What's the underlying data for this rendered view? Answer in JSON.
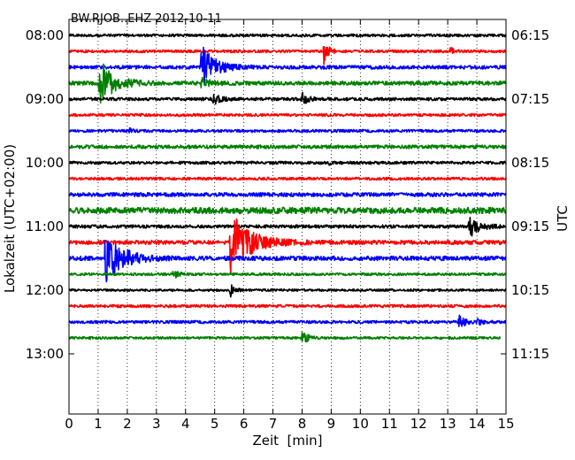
{
  "chart_data": {
    "type": "line",
    "title": "BW.RJOB..EHZ 2012-10-11",
    "xlabel": "Zeit  [min]",
    "ylabel_left": "Lokalzeit (UTC+02:00)",
    "ylabel_right": "UTC",
    "xlim": [
      0,
      15
    ],
    "x_ticks": [
      "0",
      "1",
      "2",
      "3",
      "4",
      "5",
      "6",
      "7",
      "8",
      "9",
      "10",
      "11",
      "12",
      "13",
      "14",
      "15"
    ],
    "row_interval_min": 15,
    "row_count": 20,
    "left_ticks": [
      "08:00",
      "09:00",
      "10:00",
      "11:00",
      "12:00",
      "13:00"
    ],
    "right_ticks": [
      "06:15",
      "07:15",
      "08:15",
      "09:15",
      "10:15",
      "11:15"
    ],
    "grid": "vertical dotted at every minute",
    "colors": [
      "#000000",
      "#ff0000",
      "#0000ff",
      "#008000"
    ],
    "trace_rows": [
      {
        "color": "#000000",
        "base_amp": 1.5,
        "events": []
      },
      {
        "color": "#ff0000",
        "base_amp": 1.5,
        "events": [
          {
            "x": 8.75,
            "amp": 14,
            "dur": 0.4
          },
          {
            "x": 13.1,
            "amp": 4,
            "dur": 0.3
          }
        ]
      },
      {
        "color": "#0000ff",
        "base_amp": 2.0,
        "events": [
          {
            "x": 4.55,
            "amp": 24,
            "dur": 1.2
          }
        ]
      },
      {
        "color": "#008000",
        "base_amp": 2.2,
        "events": [
          {
            "x": 1.05,
            "amp": 26,
            "dur": 1.3
          },
          {
            "x": 4.55,
            "amp": 5,
            "dur": 0.8
          }
        ]
      },
      {
        "color": "#000000",
        "base_amp": 1.7,
        "events": [
          {
            "x": 4.95,
            "amp": 6,
            "dur": 0.6
          },
          {
            "x": 8.0,
            "amp": 7,
            "dur": 0.5
          }
        ]
      },
      {
        "color": "#ff0000",
        "base_amp": 1.5,
        "events": []
      },
      {
        "color": "#0000ff",
        "base_amp": 1.5,
        "events": [
          {
            "x": 2.05,
            "amp": 3,
            "dur": 0.3
          }
        ]
      },
      {
        "color": "#008000",
        "base_amp": 2.0,
        "events": []
      },
      {
        "color": "#000000",
        "base_amp": 1.6,
        "events": [
          {
            "x": 8.95,
            "amp": 3,
            "dur": 0.3
          }
        ]
      },
      {
        "color": "#ff0000",
        "base_amp": 1.5,
        "events": []
      },
      {
        "color": "#0000ff",
        "base_amp": 2.2,
        "events": []
      },
      {
        "color": "#008000",
        "base_amp": 3.4,
        "events": []
      },
      {
        "color": "#000000",
        "base_amp": 1.8,
        "events": [
          {
            "x": 13.75,
            "amp": 12,
            "dur": 0.9
          }
        ]
      },
      {
        "color": "#ff0000",
        "base_amp": 2.3,
        "events": [
          {
            "x": 5.55,
            "amp": 34,
            "dur": 1.8
          }
        ]
      },
      {
        "color": "#0000ff",
        "base_amp": 2.4,
        "events": [
          {
            "x": 1.25,
            "amp": 28,
            "dur": 1.5
          },
          {
            "x": 2.05,
            "amp": 5,
            "dur": 0.4
          }
        ]
      },
      {
        "color": "#008000",
        "base_amp": 1.4,
        "events": [
          {
            "x": 3.6,
            "amp": 6,
            "dur": 0.4
          }
        ]
      },
      {
        "color": "#000000",
        "base_amp": 1.3,
        "events": [
          {
            "x": 5.55,
            "amp": 7,
            "dur": 0.4
          }
        ]
      },
      {
        "color": "#ff0000",
        "base_amp": 1.6,
        "events": []
      },
      {
        "color": "#0000ff",
        "base_amp": 1.6,
        "events": [
          {
            "x": 13.4,
            "amp": 7,
            "dur": 0.6
          },
          {
            "x": 14.05,
            "amp": 4,
            "dur": 0.4
          }
        ]
      },
      {
        "color": "#008000",
        "base_amp": 1.4,
        "events": [
          {
            "x": 8.0,
            "amp": 8,
            "dur": 0.5
          }
        ],
        "end_min": 14.8
      }
    ]
  }
}
